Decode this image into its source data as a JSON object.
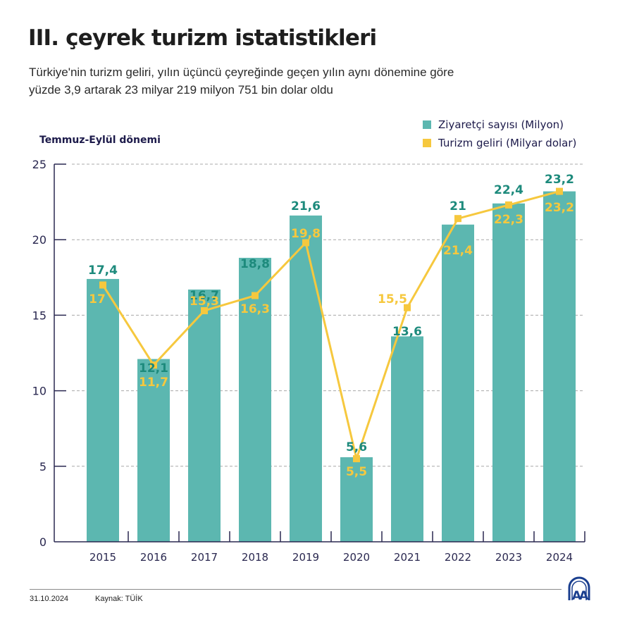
{
  "header": {
    "title": "III. çeyrek turizm istatistikleri",
    "subtitle_line1": "Türkiye'nin turizm geliri, yılın üçüncü çeyreğinde geçen yılın aynı dönemine göre",
    "subtitle_line2": "yüzde 3,9 artarak 23 milyar 219 milyon 751 bin dolar oldu"
  },
  "colors": {
    "bar": "#5cb7b0",
    "bar_label": "#1d8a7c",
    "line": "#f6c83e",
    "line_label": "#f6c83e",
    "axis": "#2a2850",
    "grid": "#a8a8a8"
  },
  "chart_data": {
    "type": "bar",
    "title": "III. çeyrek turizm istatistikleri",
    "period_label": "Temmuz-Eylül dönemi",
    "xlabel": "",
    "ylabel": "",
    "ylim": [
      0,
      25
    ],
    "yticks": [
      0,
      5,
      10,
      15,
      20,
      25
    ],
    "grid": true,
    "legend_position": "top-right",
    "categories": [
      "2015",
      "2016",
      "2017",
      "2018",
      "2019",
      "2020",
      "2021",
      "2022",
      "2023",
      "2024"
    ],
    "series": [
      {
        "name": "Ziyaretçi sayısı (Milyon)",
        "type": "bar",
        "values": [
          17.4,
          12.1,
          16.7,
          18.8,
          21.6,
          5.6,
          13.6,
          21,
          22.4,
          23.2
        ],
        "labels": [
          "17,4",
          "12,1",
          "16,7",
          "18,8",
          "21,6",
          "5,6",
          "13,6",
          "21",
          "22,4",
          "23,2"
        ]
      },
      {
        "name": "Turizm geliri (Milyar dolar)",
        "type": "line",
        "values": [
          17,
          11.7,
          15.3,
          16.3,
          19.8,
          5.5,
          15.5,
          21.4,
          22.3,
          23.2
        ],
        "labels": [
          "17",
          "11,7",
          "15,3",
          "16,3",
          "19,8",
          "5,5",
          "15,5",
          "21,4",
          "22,3",
          "23,2"
        ]
      }
    ]
  },
  "legend": {
    "items": [
      {
        "label": "Ziyaretçi sayısı (Milyon)",
        "color": "#5cb7b0"
      },
      {
        "label": "Turizm geliri (Milyar dolar)",
        "color": "#f6c83e"
      }
    ]
  },
  "footer": {
    "date": "31.10.2024",
    "source": "Kaynak: TÜİK",
    "logo": "anadolu-agency-logo"
  }
}
